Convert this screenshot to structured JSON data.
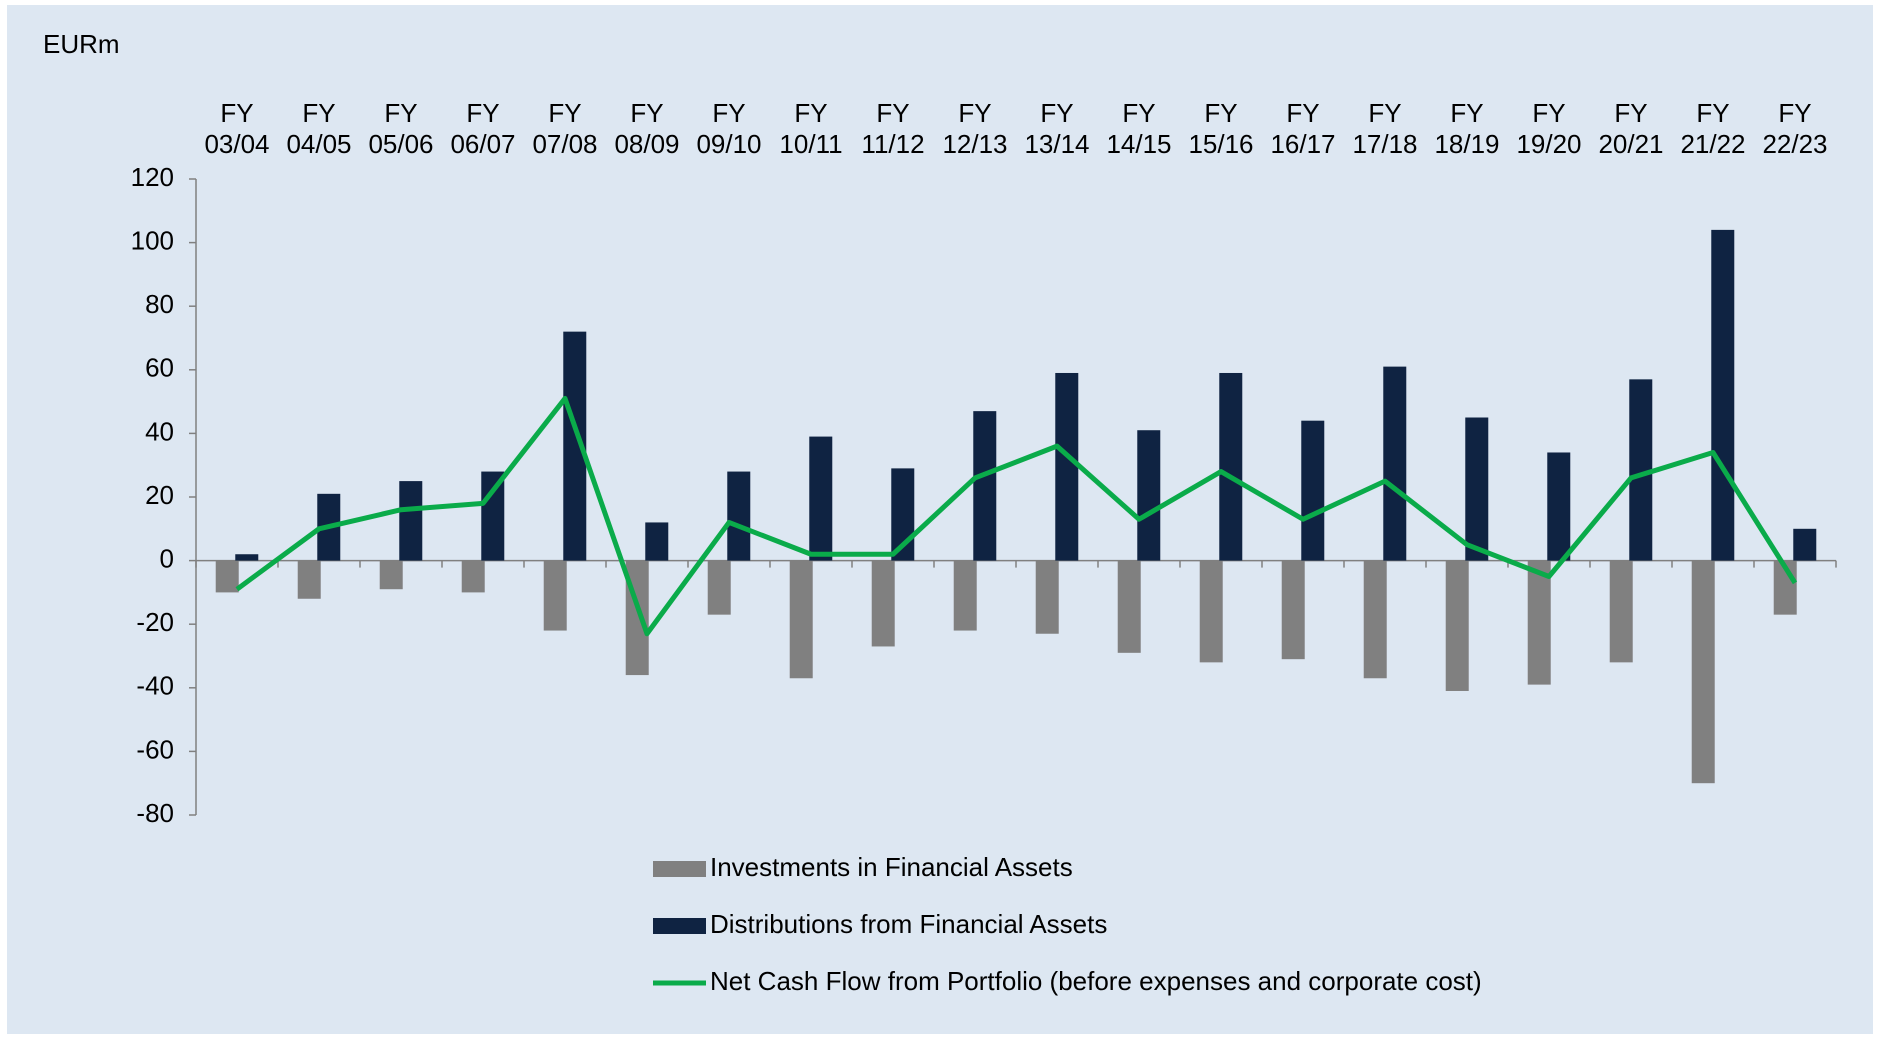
{
  "chart_data": {
    "type": "bar_line",
    "y_label": "EURm",
    "categories": [
      "FY 03/04",
      "FY 04/05",
      "FY 05/06",
      "FY 06/07",
      "FY 07/08",
      "FY 08/09",
      "FY 09/10",
      "FY 10/11",
      "FY 11/12",
      "FY 12/13",
      "FY 13/14",
      "FY 14/15",
      "FY 15/16",
      "FY 16/17",
      "FY 17/18",
      "FY 18/19",
      "FY 19/20",
      "FY 20/21",
      "FY 21/22",
      "FY 22/23"
    ],
    "series": [
      {
        "name": "Investments in Financial Assets",
        "type": "bar",
        "color": "#808080",
        "values": [
          -10,
          -12,
          -9,
          -10,
          -22,
          -36,
          -17,
          -37,
          -27,
          -22,
          -23,
          -29,
          -32,
          -31,
          -37,
          -41,
          -39,
          -32,
          -70,
          -17
        ]
      },
      {
        "name": "Distributions from Financial Assets",
        "type": "bar",
        "color": "#0f2342",
        "values": [
          2,
          21,
          25,
          28,
          72,
          12,
          28,
          39,
          29,
          47,
          59,
          41,
          59,
          44,
          61,
          45,
          34,
          57,
          104,
          10
        ]
      },
      {
        "name": "Net Cash Flow from Portfolio (before expenses and corporate cost)",
        "type": "line",
        "color": "#0aab4a",
        "values": [
          -9,
          10,
          16,
          18,
          51,
          -23,
          12,
          2,
          2,
          26,
          36,
          13,
          28,
          13,
          25,
          5,
          -5,
          26,
          34,
          -7
        ]
      }
    ],
    "ylim": [
      -80,
      120
    ],
    "yticks": [
      -80,
      -60,
      -40,
      -20,
      0,
      20,
      40,
      60,
      80,
      100,
      120
    ]
  }
}
